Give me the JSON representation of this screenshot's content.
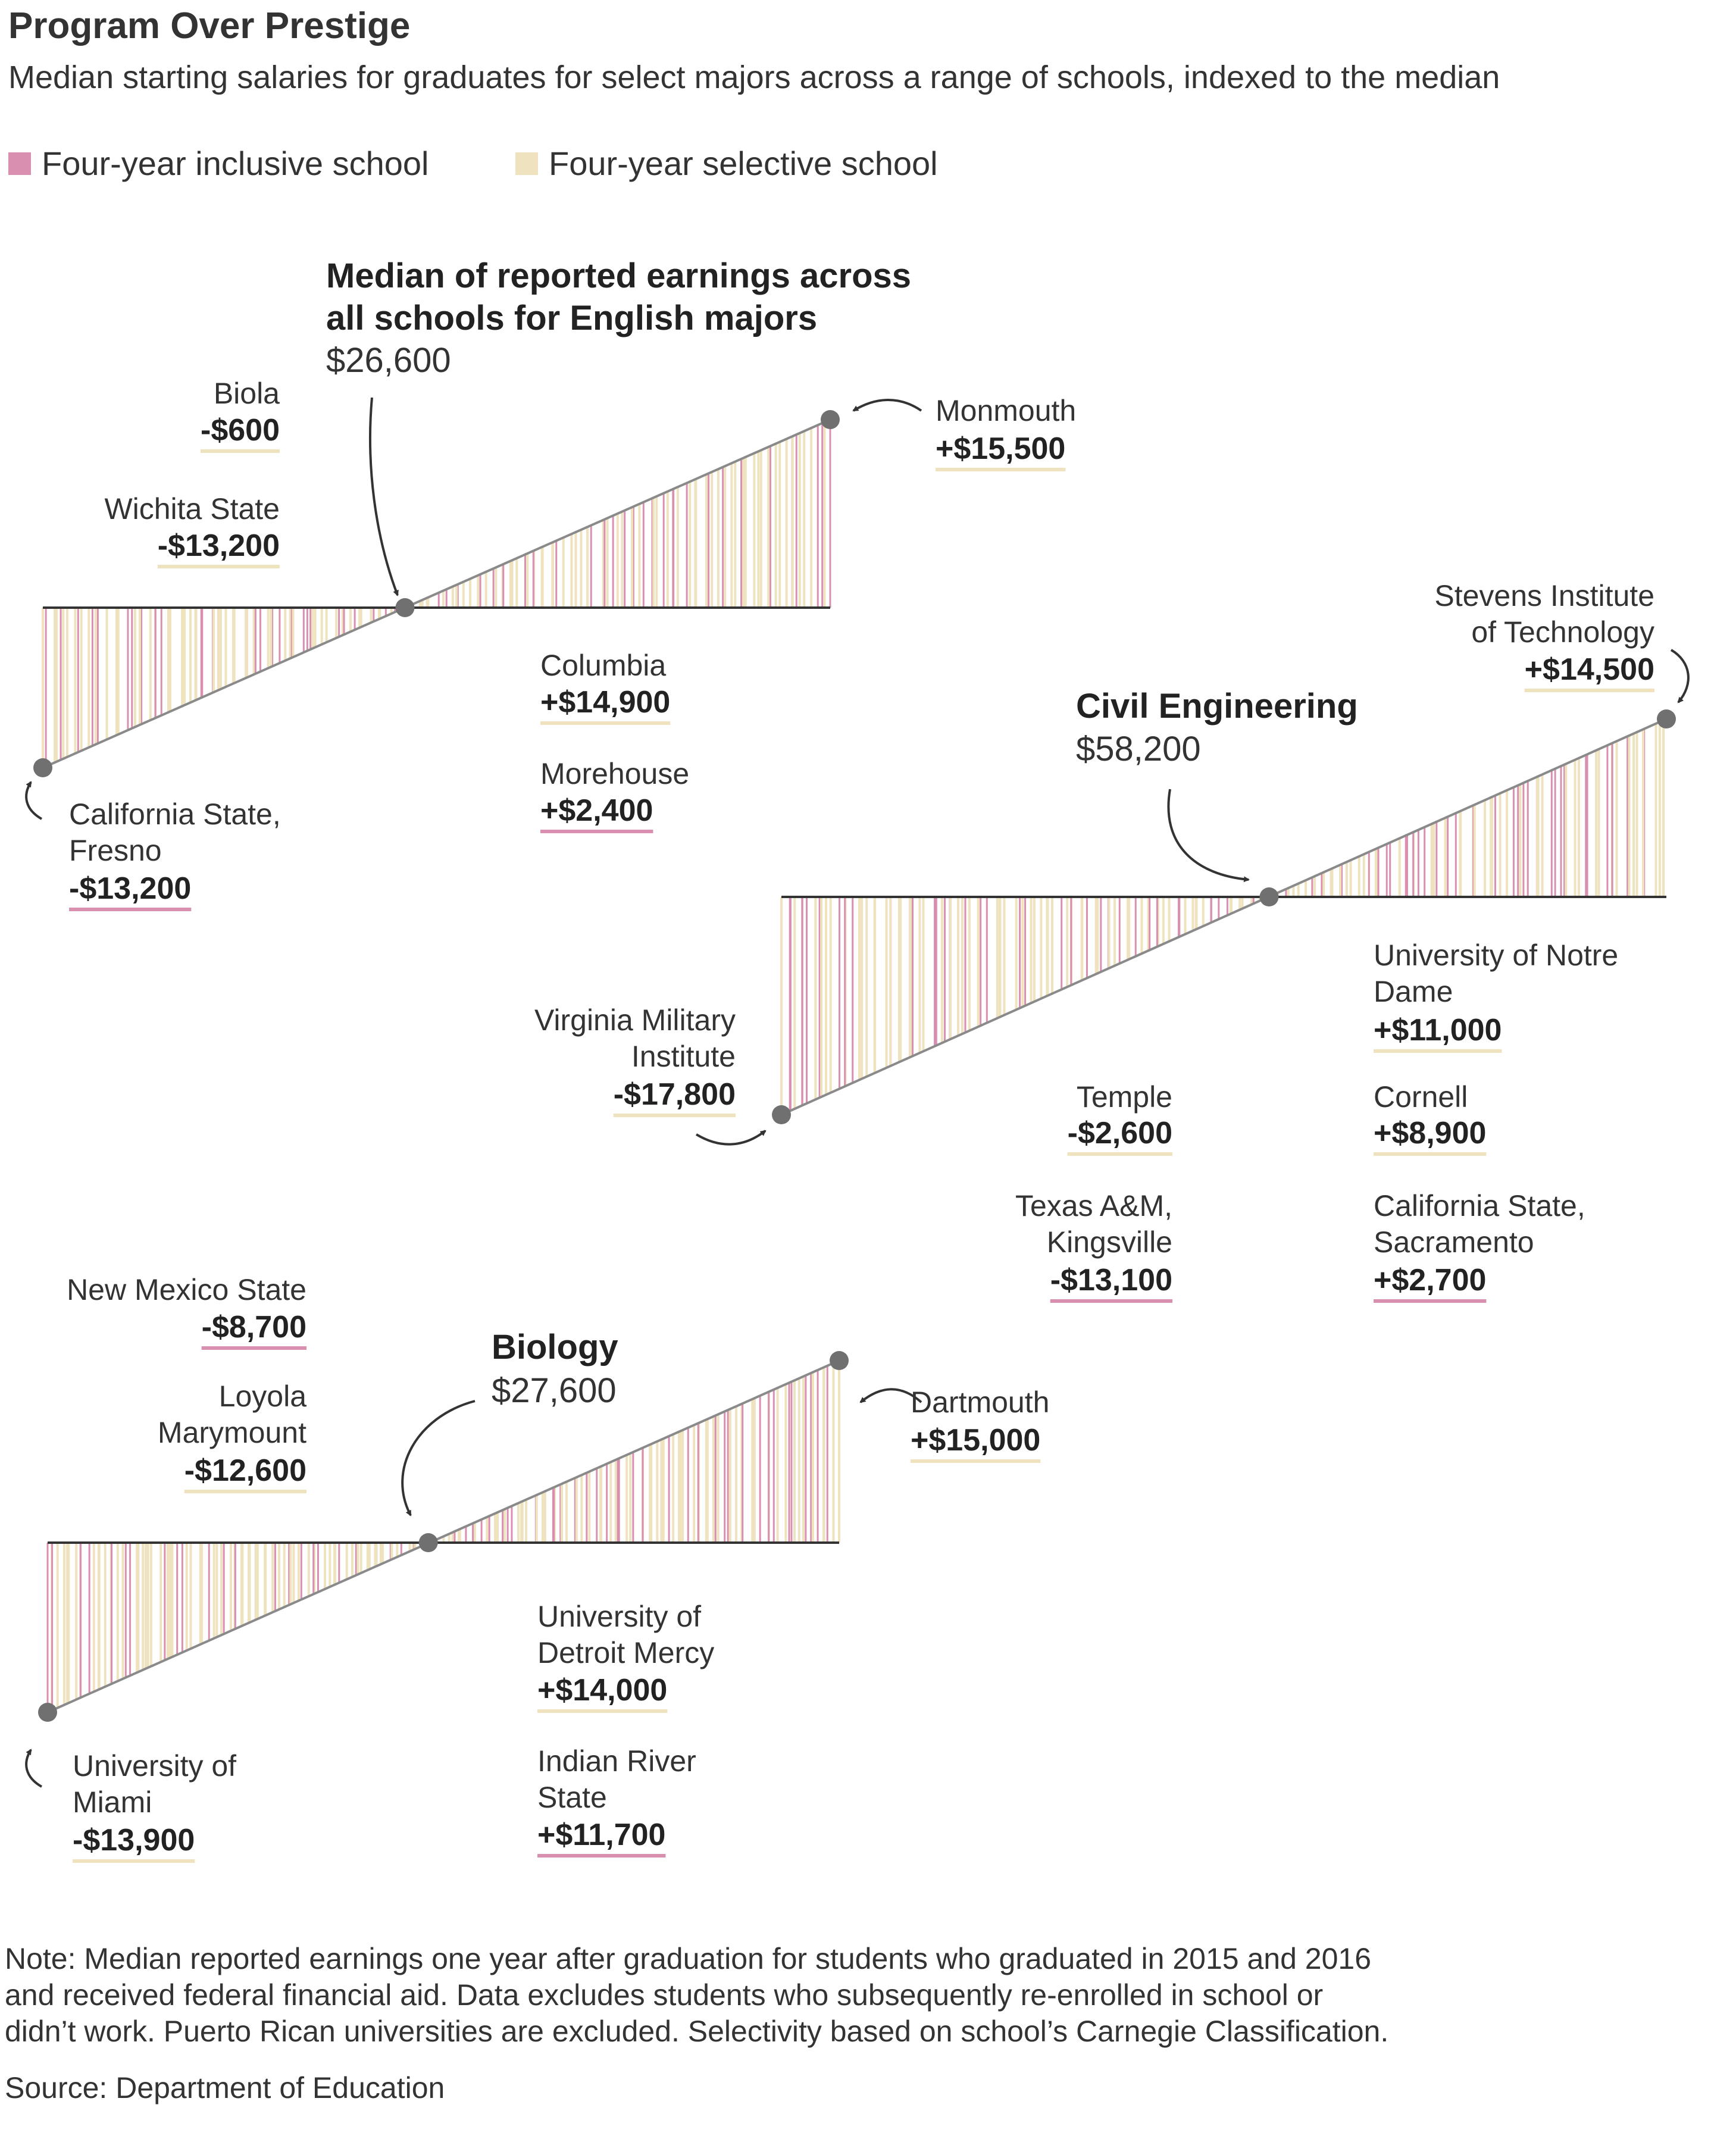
{
  "title": "Program Over Prestige",
  "subtitle": "Median starting salaries for graduates for select majors across a range of schools, indexed to the median",
  "legend": [
    {
      "label": "Four-year inclusive school",
      "color": "#d98fb0"
    },
    {
      "label": "Four-year selective school",
      "color": "#efe3bf"
    }
  ],
  "colors": {
    "inclusive": "#d98fb0",
    "selective": "#efe3bf",
    "axis": "#333333",
    "slope": "#8a8a8a",
    "dot": "#707070"
  },
  "chart_data": [
    {
      "type": "bar",
      "major": "English",
      "heading": "Median of reported earnings across all schools for English majors",
      "median": "$26,600",
      "min_diff": -13200,
      "max_diff": 15500,
      "callouts": [
        {
          "name": "Biola",
          "value": "-$600",
          "type": "selective"
        },
        {
          "name": "Wichita State",
          "value": "-$13,200",
          "type": "selective"
        },
        {
          "name": "Monmouth",
          "value": "+$15,500",
          "type": "selective"
        },
        {
          "name": "Columbia",
          "value": "+$14,900",
          "type": "selective"
        },
        {
          "name": "Morehouse",
          "value": "+$2,400",
          "type": "inclusive"
        },
        {
          "name": "California State, Fresno",
          "value": "-$13,200",
          "type": "inclusive"
        }
      ]
    },
    {
      "type": "bar",
      "major": "Civil Engineering",
      "heading": "Civil Engineering",
      "median": "$58,200",
      "min_diff": -17800,
      "max_diff": 14500,
      "callouts": [
        {
          "name": "Stevens Institute of Technology",
          "value": "+$14,500",
          "type": "selective"
        },
        {
          "name": "Virginia Military Institute",
          "value": "-$17,800",
          "type": "selective"
        },
        {
          "name": "University of Notre Dame",
          "value": "+$11,000",
          "type": "selective"
        },
        {
          "name": "Cornell",
          "value": "+$8,900",
          "type": "selective"
        },
        {
          "name": "Temple",
          "value": "-$2,600",
          "type": "selective"
        },
        {
          "name": "Texas A&M, Kingsville",
          "value": "-$13,100",
          "type": "inclusive"
        },
        {
          "name": "California State, Sacramento",
          "value": "+$2,700",
          "type": "inclusive"
        }
      ]
    },
    {
      "type": "bar",
      "major": "Biology",
      "heading": "Biology",
      "median": "$27,600",
      "min_diff": -13900,
      "max_diff": 15000,
      "callouts": [
        {
          "name": "New Mexico State",
          "value": "-$8,700",
          "type": "inclusive"
        },
        {
          "name": "Loyola Marymount",
          "value": "-$12,600",
          "type": "selective"
        },
        {
          "name": "Dartmouth",
          "value": "+$15,000",
          "type": "selective"
        },
        {
          "name": "University of Detroit Mercy",
          "value": "+$14,000",
          "type": "selective"
        },
        {
          "name": "Indian River State",
          "value": "+$11,700",
          "type": "inclusive"
        },
        {
          "name": "University of Miami",
          "value": "-$13,900",
          "type": "selective"
        }
      ]
    }
  ],
  "note": "Note: Median reported earnings one year after graduation for students who graduated in 2015 and 2016 and received federal financial aid. Data excludes students who subsequently re-enrolled in school or didn’t work. Puerto Rican universities are excluded. Selectivity based on school’s Carnegie Classification.",
  "source": "Source: Department of Education"
}
